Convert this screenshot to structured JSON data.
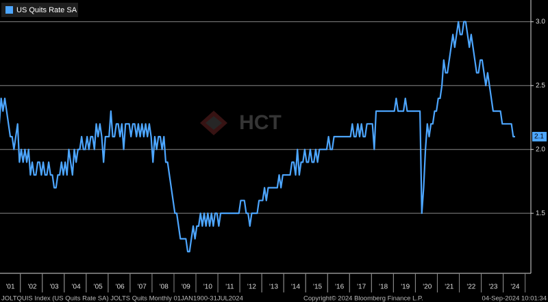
{
  "chart_data": {
    "type": "line",
    "legend": "US Quits Rate SA",
    "watermark": "HCT",
    "source": "JOLTQUIS Index (US Quits Rate SA) JOLTS Quits  Monthly 01JAN1900-31JUL2024",
    "copyright": "Copyright© 2024 Bloomberg Finance L.P.",
    "timestamp": "04-Sep-2024 10:01:34",
    "ylim": [
      1.03,
      3.17
    ],
    "yticks": [
      1.5,
      {
        "value": 2,
        "label": "2.0"
      },
      2.5,
      {
        "value": 3,
        "label": "3.0"
      }
    ],
    "grid": true,
    "categories": [
      null,
      null,
      null,
      null,
      null,
      null,
      "'01",
      null,
      null,
      null,
      null,
      null,
      null,
      null,
      null,
      null,
      null,
      null,
      "'02",
      null,
      null,
      null,
      null,
      null,
      null,
      null,
      null,
      null,
      null,
      null,
      "'03",
      null,
      null,
      null,
      null,
      null,
      null,
      null,
      null,
      null,
      null,
      null,
      "'04",
      null,
      null,
      null,
      null,
      null,
      null,
      null,
      null,
      null,
      null,
      null,
      "'05",
      null,
      null,
      null,
      null,
      null,
      null,
      null,
      null,
      null,
      null,
      null,
      "'06",
      null,
      null,
      null,
      null,
      null,
      null,
      null,
      null,
      null,
      null,
      null,
      "'07",
      null,
      null,
      null,
      null,
      null,
      null,
      null,
      null,
      null,
      null,
      null,
      "'08",
      null,
      null,
      null,
      null,
      null,
      null,
      null,
      null,
      null,
      null,
      null,
      "'09",
      null,
      null,
      null,
      null,
      null,
      null,
      null,
      null,
      null,
      null,
      null,
      "'10",
      null,
      null,
      null,
      null,
      null,
      null,
      null,
      null,
      null,
      null,
      null,
      "'11",
      null,
      null,
      null,
      null,
      null,
      null,
      null,
      null,
      null,
      null,
      null,
      "'12",
      null,
      null,
      null,
      null,
      null,
      null,
      null,
      null,
      null,
      null,
      null,
      "'13",
      null,
      null,
      null,
      null,
      null,
      null,
      null,
      null,
      null,
      null,
      null,
      "'14",
      null,
      null,
      null,
      null,
      null,
      null,
      null,
      null,
      null,
      null,
      null,
      "'15",
      null,
      null,
      null,
      null,
      null,
      null,
      null,
      null,
      null,
      null,
      null,
      "'16",
      null,
      null,
      null,
      null,
      null,
      null,
      null,
      null,
      null,
      null,
      null,
      "'17",
      null,
      null,
      null,
      null,
      null,
      null,
      null,
      null,
      null,
      null,
      null,
      "'18",
      null,
      null,
      null,
      null,
      null,
      null,
      null,
      null,
      null,
      null,
      null,
      "'19",
      null,
      null,
      null,
      null,
      null,
      null,
      null,
      null,
      null,
      null,
      null,
      "'20",
      null,
      null,
      null,
      null,
      null,
      null,
      null,
      null,
      null,
      null,
      null,
      "'21",
      null,
      null,
      null,
      null,
      null,
      null,
      null,
      null,
      null,
      null,
      null,
      "'22",
      null,
      null,
      null,
      null,
      null,
      null,
      null,
      null,
      null,
      null,
      null,
      "'23",
      null,
      null,
      null,
      null,
      null,
      null,
      null,
      null,
      null,
      null,
      null,
      "'24"
    ],
    "series": [
      {
        "name": "US Quits Rate SA",
        "color": "#4da6ff",
        "values": [
          2.2,
          2.4,
          2.3,
          2.4,
          2.3,
          2.2,
          2.1,
          2.1,
          2.0,
          2.1,
          2.2,
          1.9,
          2.0,
          1.9,
          2.0,
          1.9,
          2.0,
          1.8,
          1.9,
          1.8,
          1.8,
          1.9,
          1.9,
          1.8,
          1.9,
          1.8,
          1.8,
          1.9,
          1.8,
          1.8,
          1.7,
          1.7,
          1.8,
          1.8,
          1.9,
          1.8,
          1.9,
          1.8,
          2.0,
          1.9,
          1.8,
          2.0,
          1.9,
          2.0,
          2.0,
          2.1,
          2.0,
          2.0,
          2.1,
          2.0,
          2.1,
          2.1,
          2.0,
          2.2,
          2.1,
          2.2,
          2.1,
          1.9,
          2.1,
          2.1,
          2.1,
          2.3,
          2.1,
          2.1,
          2.2,
          2.2,
          2.1,
          2.2,
          2.0,
          2.2,
          2.2,
          2.2,
          2.1,
          2.2,
          2.2,
          2.1,
          2.2,
          2.1,
          2.2,
          2.1,
          2.2,
          2.1,
          2.2,
          2.1,
          1.9,
          2.1,
          2.0,
          2.1,
          2.1,
          2.0,
          2.1,
          1.9,
          1.9,
          1.8,
          1.7,
          1.6,
          1.5,
          1.5,
          1.4,
          1.3,
          1.3,
          1.3,
          1.3,
          1.2,
          1.2,
          1.3,
          1.4,
          1.3,
          1.4,
          1.4,
          1.5,
          1.4,
          1.5,
          1.4,
          1.5,
          1.4,
          1.5,
          1.4,
          1.5,
          1.5,
          1.4,
          1.5,
          1.5,
          1.5,
          1.5,
          1.5,
          1.5,
          1.5,
          1.5,
          1.5,
          1.5,
          1.5,
          1.6,
          1.6,
          1.6,
          1.5,
          1.5,
          1.4,
          1.5,
          1.5,
          1.5,
          1.5,
          1.6,
          1.6,
          1.6,
          1.7,
          1.6,
          1.7,
          1.7,
          1.7,
          1.7,
          1.7,
          1.7,
          1.8,
          1.7,
          1.8,
          1.8,
          1.8,
          1.8,
          1.8,
          1.9,
          1.9,
          1.8,
          2.0,
          1.8,
          1.9,
          1.9,
          2.0,
          1.9,
          1.9,
          2.0,
          1.9,
          1.9,
          2.0,
          1.9,
          2.0,
          2.0,
          2.0,
          2.0,
          2.0,
          2.1,
          2.0,
          2.0,
          2.1,
          2.1,
          2.1,
          2.1,
          2.1,
          2.1,
          2.1,
          2.1,
          2.1,
          2.1,
          2.2,
          2.1,
          2.1,
          2.2,
          2.1,
          2.2,
          2.1,
          2.1,
          2.2,
          2.2,
          2.2,
          2.2,
          2.0,
          2.3,
          2.3,
          2.3,
          2.3,
          2.3,
          2.3,
          2.3,
          2.3,
          2.3,
          2.3,
          2.3,
          2.4,
          2.3,
          2.3,
          2.3,
          2.3,
          2.4,
          2.3,
          2.3,
          2.3,
          2.3,
          2.3,
          2.3,
          2.3,
          2.3,
          1.5,
          1.7,
          2.0,
          2.2,
          2.1,
          2.2,
          2.2,
          2.3,
          2.3,
          2.4,
          2.4,
          2.5,
          2.7,
          2.6,
          2.6,
          2.7,
          2.8,
          2.9,
          2.8,
          2.9,
          3.0,
          2.9,
          2.9,
          3.0,
          3.0,
          2.9,
          2.8,
          2.9,
          2.8,
          2.7,
          2.6,
          2.6,
          2.7,
          2.7,
          2.6,
          2.5,
          2.6,
          2.5,
          2.4,
          2.3,
          2.3,
          2.3,
          2.3,
          2.3,
          2.2,
          2.2,
          2.2,
          2.2,
          2.2,
          2.2,
          2.1,
          2.1
        ]
      }
    ]
  }
}
